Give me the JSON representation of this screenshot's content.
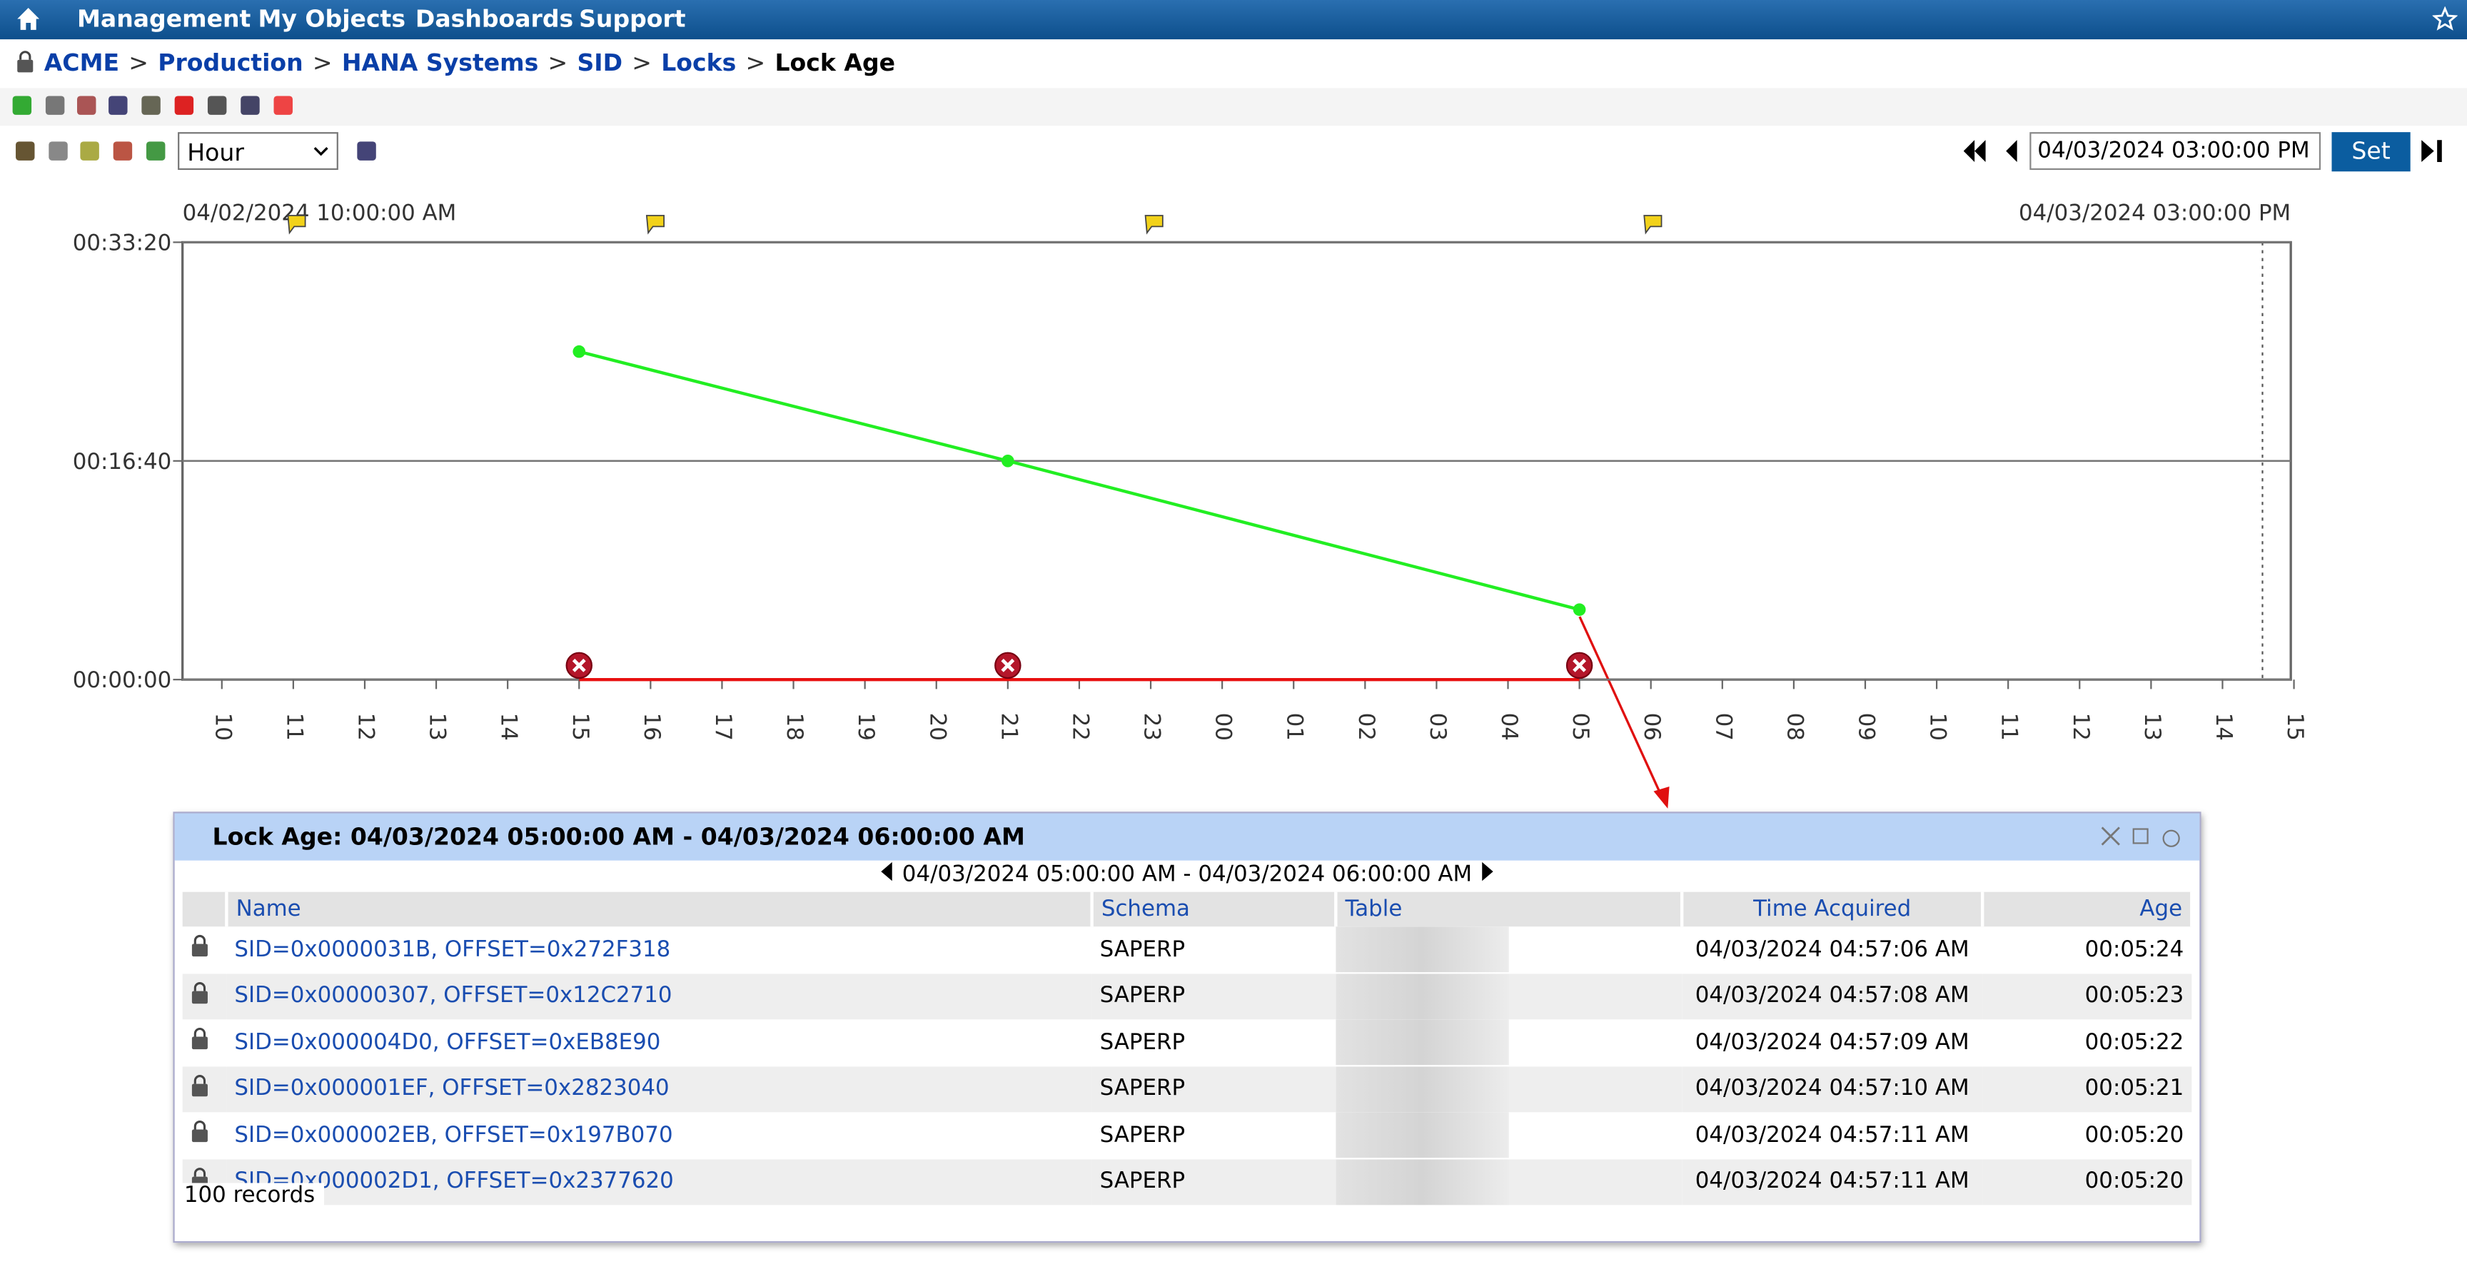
{
  "nav": {
    "items": [
      "Management",
      "My Objects",
      "Dashboards",
      "Support"
    ]
  },
  "breadcrumb": [
    "ACME",
    "Production",
    "HANA Systems",
    "SID",
    "Locks",
    "Lock Age"
  ],
  "toolbar": {
    "interval": "Hour",
    "datetime": "04/03/2024 03:00:00 PM",
    "set_button": "Set"
  },
  "chart_data": {
    "type": "line",
    "start_label": "04/02/2024 10:00:00 AM",
    "end_label": "04/03/2024 03:00:00 PM",
    "categories": [
      "10",
      "11",
      "12",
      "13",
      "14",
      "15",
      "16",
      "17",
      "18",
      "19",
      "20",
      "21",
      "22",
      "23",
      "00",
      "01",
      "02",
      "03",
      "04",
      "05",
      "06",
      "07",
      "08",
      "09",
      "10",
      "11",
      "12",
      "13",
      "14",
      "15"
    ],
    "series": [
      {
        "color": "#22ee22",
        "marker": "dot",
        "values": [
          null,
          null,
          null,
          null,
          null,
          1500,
          null,
          null,
          null,
          null,
          null,
          1000,
          null,
          null,
          null,
          null,
          null,
          null,
          null,
          320,
          null,
          null,
          null,
          null,
          null,
          null,
          null,
          null,
          null,
          null
        ]
      },
      {
        "color": "#e81010",
        "marker": "error",
        "values": [
          null,
          null,
          null,
          null,
          null,
          0,
          null,
          null,
          null,
          null,
          null,
          0,
          null,
          null,
          null,
          null,
          null,
          null,
          null,
          0,
          null,
          null,
          null,
          null,
          null,
          null,
          null,
          null,
          null,
          null
        ]
      }
    ],
    "ylim": [
      0,
      2000
    ],
    "yticks": [
      {
        "value": 0,
        "label": "00:00:00"
      },
      {
        "value": 1000,
        "label": "00:16:40"
      },
      {
        "value": 2000,
        "label": "00:33:20"
      }
    ],
    "grid": true
  },
  "popup": {
    "title": "Lock Age: 04/03/2024 05:00:00 AM - 04/03/2024 06:00:00 AM",
    "range": "04/03/2024 05:00:00 AM - 04/03/2024 06:00:00 AM",
    "columns": [
      "Name",
      "Schema",
      "Table",
      "Time Acquired",
      "Age"
    ],
    "rows": [
      {
        "name": "SID=0x0000031B, OFFSET=0x272F318",
        "schema": "SAPERP",
        "time_acquired": "04/03/2024 04:57:06 AM",
        "age": "00:05:24"
      },
      {
        "name": "SID=0x00000307, OFFSET=0x12C2710",
        "schema": "SAPERP",
        "time_acquired": "04/03/2024 04:57:08 AM",
        "age": "00:05:23"
      },
      {
        "name": "SID=0x000004D0, OFFSET=0xEB8E90",
        "schema": "SAPERP",
        "time_acquired": "04/03/2024 04:57:09 AM",
        "age": "00:05:22"
      },
      {
        "name": "SID=0x000001EF, OFFSET=0x2823040",
        "schema": "SAPERP",
        "time_acquired": "04/03/2024 04:57:10 AM",
        "age": "00:05:21"
      },
      {
        "name": "SID=0x000002EB, OFFSET=0x197B070",
        "schema": "SAPERP",
        "time_acquired": "04/03/2024 04:57:11 AM",
        "age": "00:05:20"
      },
      {
        "name": "SID=0x000002D1, OFFSET=0x2377620",
        "schema": "SAPERP",
        "time_acquired": "04/03/2024 04:57:11 AM",
        "age": "00:05:20"
      }
    ],
    "records": "100 records"
  }
}
